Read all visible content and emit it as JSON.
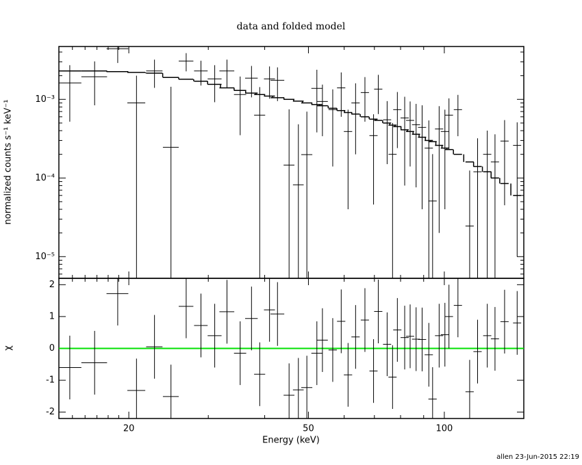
{
  "footer": "allen 23-Jun-2015 22:19",
  "chart_data": [
    {
      "type": "errorbar",
      "title": "data and folded model",
      "ylabel": "normalized counts s⁻¹ keV⁻¹",
      "xlog": true,
      "ylog": true,
      "color": "#000000",
      "xlim": [
        14,
        150
      ],
      "ylim": [
        5.3e-06,
        0.0047
      ],
      "yticks": [
        {
          "value": 1e-05,
          "label": "10⁻⁵"
        },
        {
          "value": 0.0001,
          "label": "10⁻⁴"
        },
        {
          "value": 0.001,
          "label": "10⁻³"
        }
      ],
      "yminorticks": [
        6e-06,
        7e-06,
        8e-06,
        9e-06,
        2e-05,
        3e-05,
        4e-05,
        5e-05,
        6e-05,
        7e-05,
        8e-05,
        9e-05,
        0.0002,
        0.0003,
        0.0004,
        0.0005,
        0.0006,
        0.0007,
        0.0008,
        0.0009,
        0.002,
        0.003,
        0.004
      ],
      "xticks": [
        20,
        50,
        100
      ],
      "xminorticks": [
        15,
        16,
        17,
        18,
        19,
        30,
        40,
        60,
        70,
        80,
        90
      ],
      "x": [
        14.8,
        16.8,
        18.9,
        20.8,
        22.8,
        24.8,
        26.8,
        28.9,
        31.0,
        33.0,
        35.3,
        37.4,
        39.0,
        41.0,
        42.7,
        45.3,
        47.5,
        49.6,
        52.2,
        53.7,
        56.6,
        59.1,
        61.2,
        63.6,
        66.7,
        69.7,
        71.4,
        74.7,
        76.8,
        78.7,
        81.7,
        84.0,
        86.6,
        89.3,
        92.4,
        94.2,
        97.4,
        100.3,
        102.4,
        107.2,
        113.8,
        118.5,
        124.5,
        129.5,
        136.0,
        145.0
      ],
      "xerr": [
        0.9,
        1.1,
        1.05,
        0.95,
        0.95,
        1.0,
        1.0,
        1.0,
        1.1,
        1.25,
        1.1,
        1.2,
        1.1,
        1.15,
        1.5,
        1.25,
        1.3,
        1.4,
        1.45,
        1.5,
        1.2,
        1.25,
        1.3,
        1.35,
        1.4,
        1.45,
        1.5,
        1.55,
        1.6,
        1.65,
        1.7,
        1.75,
        1.8,
        1.85,
        1.95,
        2.0,
        2.05,
        2.1,
        2.15,
        2.25,
        2.4,
        2.5,
        2.6,
        2.7,
        2.85,
        3.0
      ],
      "values": [
        0.00162,
        0.00194,
        0.0044,
        0.0009,
        0.0023,
        0.000246,
        0.00307,
        0.0023,
        0.00182,
        0.0023,
        0.00115,
        0.00186,
        0.00063,
        0.00182,
        0.00175,
        0.000146,
        8.2e-05,
        0.000198,
        0.00138,
        0.00094,
        0.00074,
        0.0014,
        0.00039,
        0.0009,
        0.00122,
        0.000346,
        0.00135,
        0.00055,
        0.0002,
        0.00074,
        0.00058,
        0.00054,
        0.000476,
        0.00044,
        0.00024,
        5.1e-05,
        0.00042,
        0.00039,
        0.00063,
        0.00074,
        2.45e-05,
        0.00012,
        0.0002,
        0.00016,
        0.000295,
        0.00026
      ],
      "errors": [
        0.0011,
        0.0011,
        0.0015,
        0.0011,
        0.0009,
        0.0012,
        0.0008,
        0.0008,
        0.0009,
        0.0009,
        0.0008,
        0.0008,
        0.0008,
        0.0008,
        0.0008,
        0.0006,
        0.0004,
        0.0005,
        0.001,
        0.0006,
        0.0006,
        0.0008,
        0.00035,
        0.0007,
        0.0007,
        0.0003,
        0.0007,
        0.0004,
        0.0003,
        0.0005,
        0.0005,
        0.0004,
        0.0004,
        0.0004,
        0.0003,
        0.00015,
        0.0004,
        0.00035,
        0.0004,
        0.0004,
        0.0001,
        0.0002,
        0.0002,
        0.0002,
        0.00025,
        0.00025
      ],
      "model": [
        0.0023,
        0.0023,
        0.00225,
        0.0022,
        0.00215,
        0.0019,
        0.0018,
        0.0017,
        0.00155,
        0.0014,
        0.0013,
        0.0012,
        0.00115,
        0.0011,
        0.00105,
        0.001,
        0.00095,
        0.0009,
        0.00086,
        0.00083,
        0.00077,
        0.00072,
        0.00068,
        0.00065,
        0.0006,
        0.00056,
        0.00054,
        0.0005,
        0.00047,
        0.00045,
        0.00041,
        0.00039,
        0.00036,
        0.00033,
        0.0003,
        0.00029,
        0.00026,
        0.00024,
        0.00023,
        0.0002,
        0.00016,
        0.00014,
        0.00012,
        0.0001,
        8.5e-05,
        6e-05
      ]
    },
    {
      "type": "errorbar",
      "xlabel": "Energy (keV)",
      "ylabel": "χ",
      "xlog": true,
      "color": "#000000",
      "xlim": [
        14,
        150
      ],
      "ylim": [
        -2.2,
        2.2
      ],
      "yticks": [
        -2,
        -1,
        0,
        1,
        2
      ],
      "xticks": [
        20,
        50,
        100
      ],
      "xminorticks": [
        15,
        16,
        17,
        18,
        19,
        30,
        40,
        60,
        70,
        80,
        90
      ],
      "ref_line": {
        "value": 0,
        "color": "#00e000"
      },
      "x": [
        14.8,
        16.8,
        18.9,
        20.8,
        22.8,
        24.8,
        26.8,
        28.9,
        31.0,
        33.0,
        35.3,
        37.4,
        39.0,
        41.0,
        42.7,
        45.3,
        47.5,
        49.6,
        52.2,
        53.7,
        56.6,
        59.1,
        61.2,
        63.6,
        66.7,
        69.7,
        71.4,
        74.7,
        76.8,
        78.7,
        81.7,
        84.0,
        86.6,
        89.3,
        92.4,
        94.2,
        97.4,
        100.3,
        102.4,
        107.2,
        113.8,
        118.5,
        124.5,
        129.5,
        136.0,
        145.0
      ],
      "xerr": [
        0.9,
        1.1,
        1.05,
        0.95,
        0.95,
        1.0,
        1.0,
        1.0,
        1.1,
        1.25,
        1.1,
        1.2,
        1.1,
        1.15,
        1.5,
        1.25,
        1.3,
        1.4,
        1.45,
        1.5,
        1.2,
        1.25,
        1.3,
        1.35,
        1.4,
        1.45,
        1.5,
        1.55,
        1.6,
        1.65,
        1.7,
        1.75,
        1.8,
        1.85,
        1.95,
        2.0,
        2.05,
        2.1,
        2.15,
        2.25,
        2.4,
        2.5,
        2.6,
        2.7,
        2.85,
        3.0
      ],
      "values": [
        -0.6,
        -0.45,
        1.72,
        -1.32,
        0.05,
        -1.51,
        1.32,
        0.72,
        0.4,
        1.15,
        -0.15,
        0.94,
        -0.81,
        1.21,
        1.08,
        -1.47,
        -1.3,
        -1.23,
        -0.15,
        0.26,
        -0.05,
        0.85,
        -0.83,
        0.36,
        0.89,
        -0.71,
        1.16,
        0.13,
        -0.9,
        0.58,
        0.34,
        0.38,
        0.29,
        0.28,
        -0.2,
        -1.59,
        0.4,
        0.43,
        1.0,
        1.35,
        -1.36,
        -0.1,
        0.4,
        0.3,
        0.84,
        0.8
      ],
      "errors": [
        1,
        1,
        1,
        1,
        1,
        1,
        1,
        1,
        1,
        1,
        1,
        1,
        1,
        1,
        1,
        1,
        1,
        1,
        1,
        1,
        1,
        1,
        1,
        1,
        1,
        1,
        1,
        1,
        1,
        1,
        1,
        1,
        1,
        1,
        1,
        1,
        1,
        1,
        1,
        1,
        1,
        1,
        1,
        1,
        1,
        1
      ]
    }
  ]
}
